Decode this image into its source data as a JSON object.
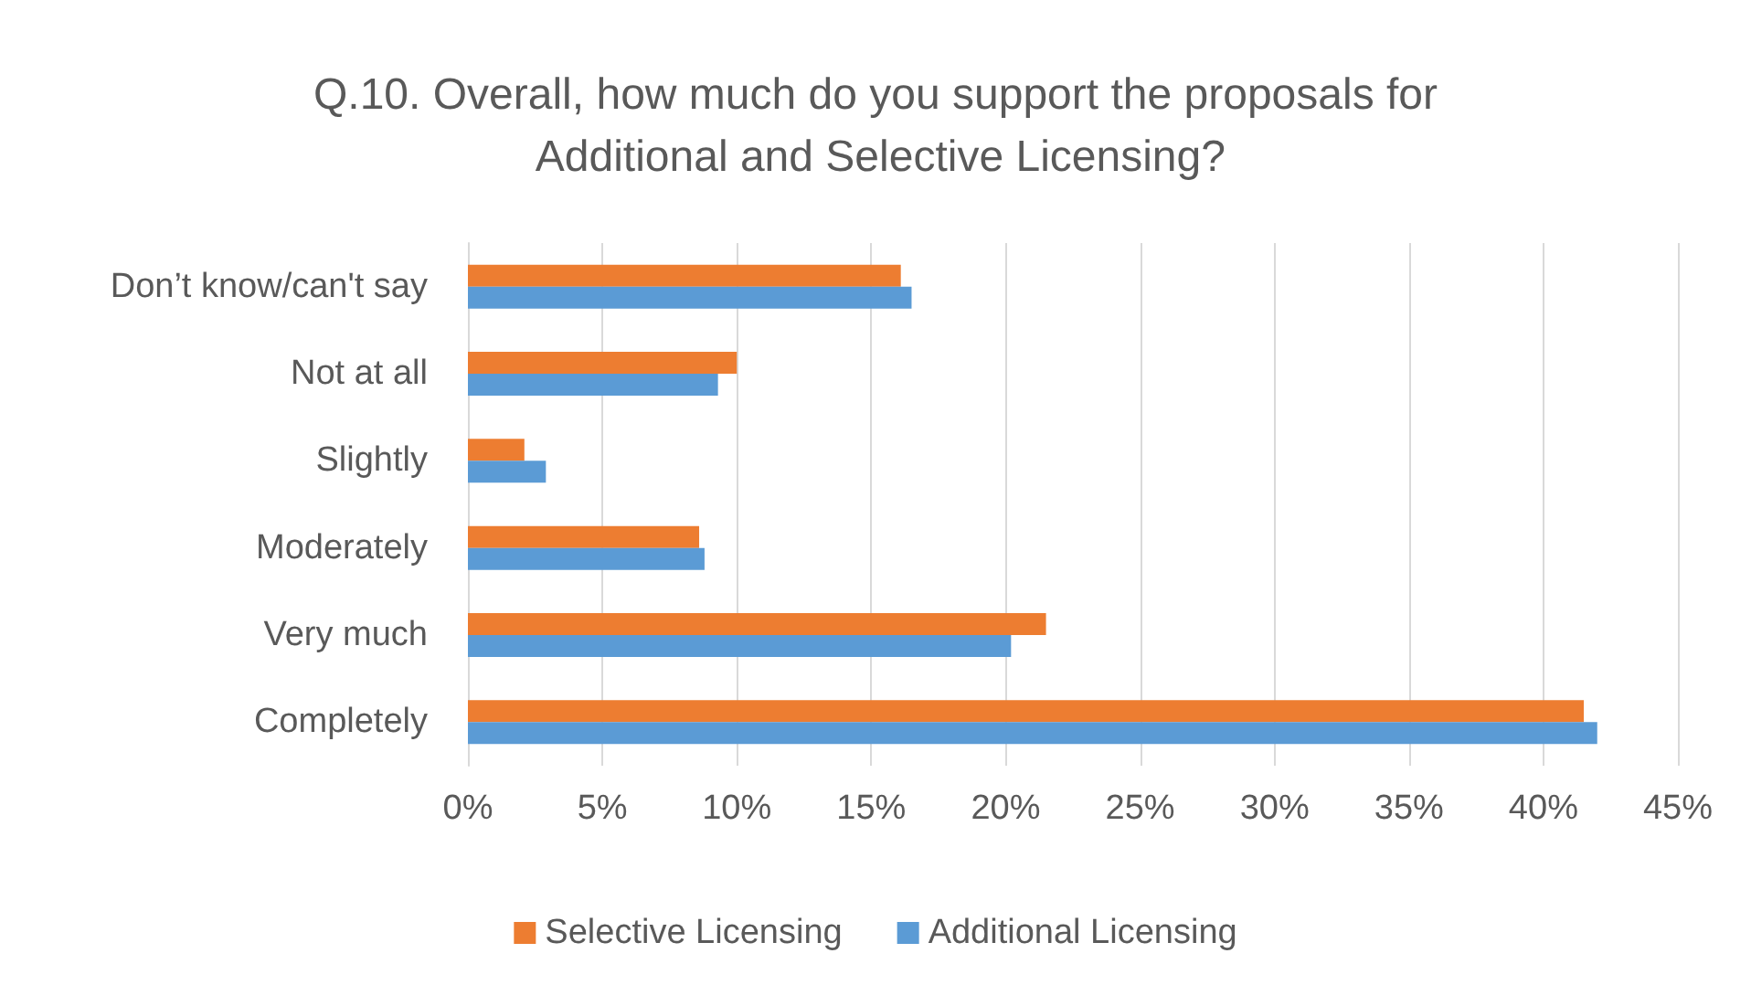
{
  "chart_data": {
    "type": "bar",
    "orientation": "horizontal",
    "title": "Q.10. Overall, how much do you support the proposals for Additional and Selective Licensing?",
    "categories": [
      "Don’t know/can't say",
      "Not at all",
      "Slightly",
      "Moderately",
      "Very much",
      "Completely"
    ],
    "series": [
      {
        "name": "Selective Licensing",
        "color": "#ed7d31",
        "values": [
          16.1,
          10.0,
          2.1,
          8.6,
          21.5,
          41.5
        ]
      },
      {
        "name": "Additional Licensing",
        "color": "#5b9bd5",
        "values": [
          16.5,
          9.3,
          2.9,
          8.8,
          20.2,
          42.0
        ]
      }
    ],
    "xlim": [
      0,
      45
    ],
    "xticks": [
      {
        "value": 0,
        "label": "0%"
      },
      {
        "value": 5,
        "label": "5%"
      },
      {
        "value": 10,
        "label": "10%"
      },
      {
        "value": 15,
        "label": "15%"
      },
      {
        "value": 20,
        "label": "20%"
      },
      {
        "value": 25,
        "label": "25%"
      },
      {
        "value": 30,
        "label": "30%"
      },
      {
        "value": 35,
        "label": "35%"
      },
      {
        "value": 40,
        "label": "40%"
      },
      {
        "value": 45,
        "label": "45%"
      }
    ],
    "grid": "x",
    "legend": "bottom"
  }
}
